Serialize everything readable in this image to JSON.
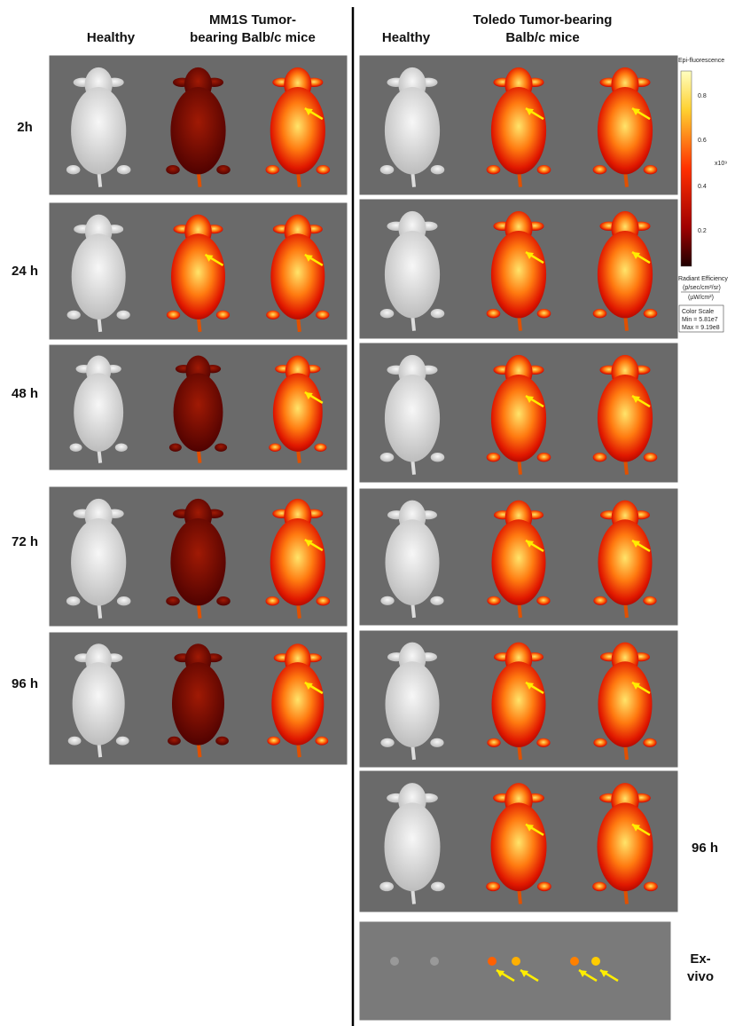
{
  "header": {
    "left": {
      "healthy": "Healthy",
      "tumor": [
        "MM1S Tumor-",
        "bearing Balb/c mice"
      ]
    },
    "right": {
      "healthy": "Healthy",
      "tumor": [
        "Toledo Tumor-bearing",
        "Balb/c mice"
      ]
    }
  },
  "timepoints_left": [
    "2h",
    "24 h",
    "48 h",
    "72 h",
    "96 h"
  ],
  "right_labels": {
    "late": "96 h",
    "exvivo": [
      "Ex-",
      "vivo"
    ]
  },
  "colorbar": {
    "title": "Epi-fluorescence",
    "ticks": [
      "0.8",
      "0.6",
      "0.4",
      "0.2"
    ],
    "multiplier": "x10⁹",
    "unit_title": "Radiant Efficiency",
    "unit_num": "(p/sec/cm²/sr)",
    "unit_den": "(µW/cm²)",
    "scale_title": "Color Scale",
    "min": "Min = 5.81e7",
    "max": "Max = 9.19e8"
  }
}
